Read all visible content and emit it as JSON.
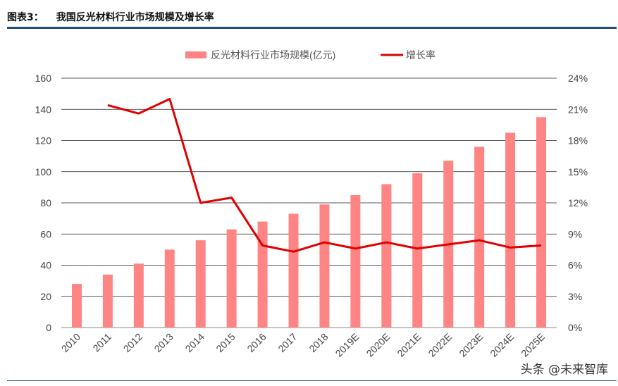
{
  "header": {
    "label": "图表3：",
    "title": "我国反光材料行业市场规模及增长率"
  },
  "watermark": "头条 @未来智库",
  "chart_data": {
    "type": "bar+line",
    "categories": [
      "2010",
      "2011",
      "2012",
      "2013",
      "2014",
      "2015",
      "2016",
      "2017",
      "2018",
      "2019E",
      "2020E",
      "2021E",
      "2022E",
      "2023E",
      "2024E",
      "2025E"
    ],
    "series": [
      {
        "name": "反光材料行业市场规模(亿元)",
        "type": "bar",
        "axis": "left",
        "color": "#ff8585",
        "values": [
          28,
          34,
          41,
          50,
          56,
          63,
          68,
          73,
          79,
          85,
          92,
          99,
          107,
          116,
          125,
          135
        ]
      },
      {
        "name": "增长率",
        "type": "line",
        "axis": "right",
        "color": "#e00000",
        "values": [
          null,
          21.4,
          20.6,
          22.0,
          12.0,
          12.5,
          7.9,
          7.3,
          8.2,
          7.6,
          8.2,
          7.6,
          8.0,
          8.4,
          7.7,
          7.9
        ]
      }
    ],
    "left_axis": {
      "ylim": [
        0,
        160
      ],
      "ticks": [
        "0",
        "20",
        "40",
        "60",
        "80",
        "100",
        "120",
        "140",
        "160"
      ]
    },
    "right_axis": {
      "ylim": [
        0,
        24
      ],
      "ticks": [
        "0%",
        "3%",
        "6%",
        "9%",
        "12%",
        "15%",
        "18%",
        "21%",
        "24%"
      ]
    },
    "grid": true,
    "legend": "top-center"
  }
}
